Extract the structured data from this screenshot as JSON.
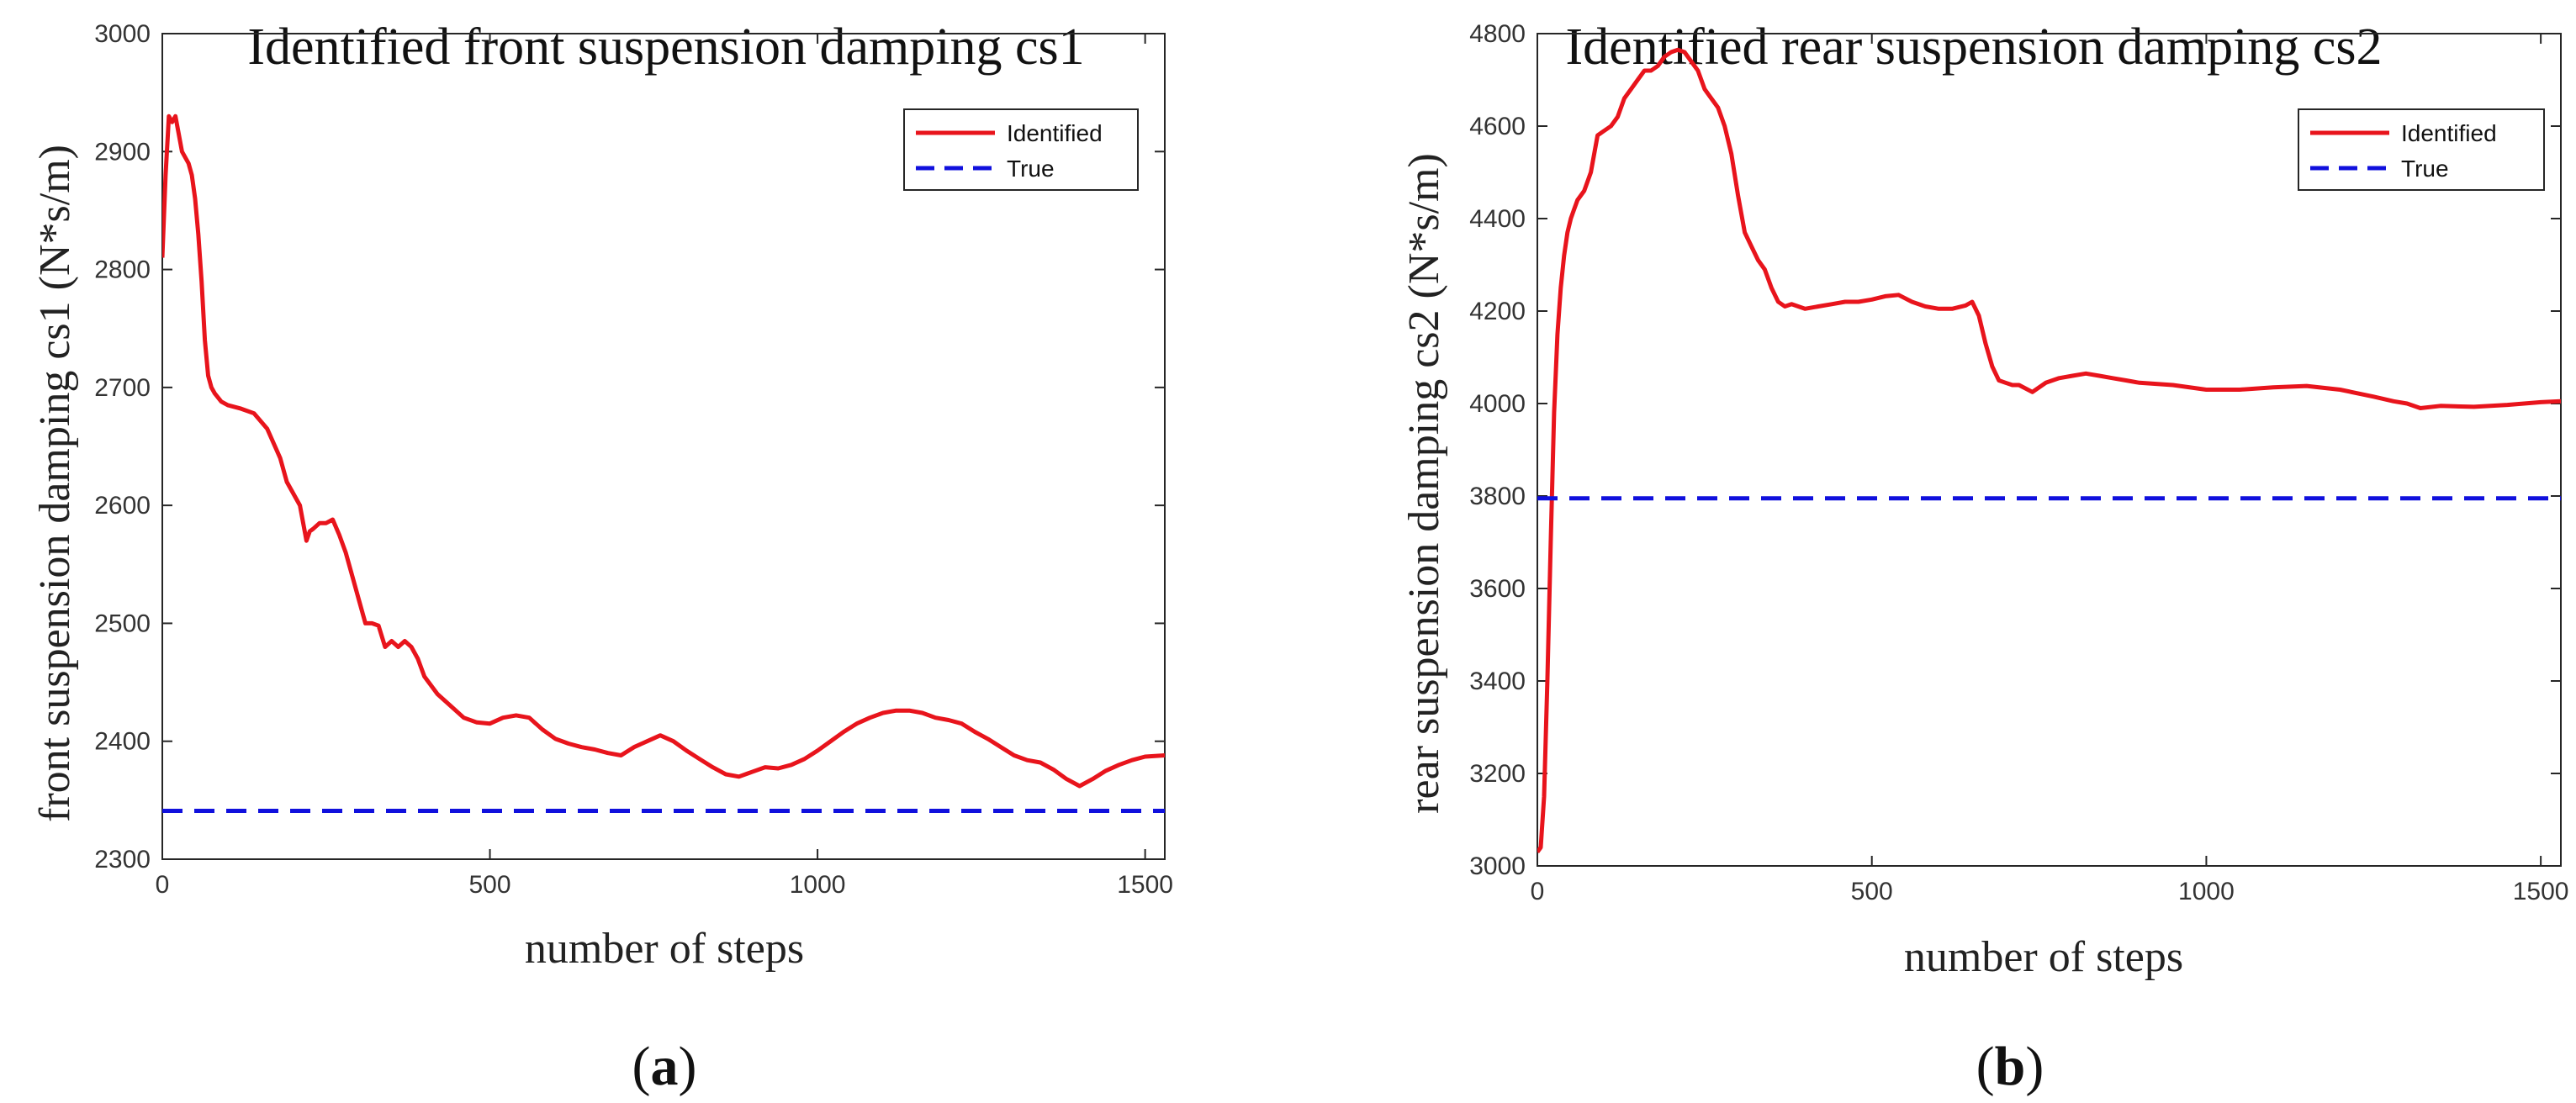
{
  "chart_data": [
    {
      "type": "line",
      "title": "Identified front suspension damping cs1",
      "xlabel": "number of steps",
      "ylabel": "front suspension damping cs1 (N*s/m)",
      "xlim": [
        0,
        1530
      ],
      "ylim": [
        2300,
        3000
      ],
      "xticks": [
        0,
        500,
        1000,
        1500
      ],
      "yticks": [
        2300,
        2400,
        2500,
        2600,
        2700,
        2800,
        2900,
        3000
      ],
      "xtick_labels": [
        "0",
        "500",
        "1000",
        "1500"
      ],
      "ytick_labels": [
        "2300",
        "2400",
        "2500",
        "2600",
        "2700",
        "2800",
        "2900",
        "3000"
      ],
      "grid": false,
      "legend_position": "top-right",
      "panel": {
        "open": "(",
        "letter": "a",
        "close": ")"
      },
      "series": [
        {
          "name": "Identified",
          "color": "#e8141c",
          "style": "solid",
          "x": [
            0,
            5,
            10,
            15,
            20,
            25,
            30,
            35,
            40,
            45,
            50,
            55,
            60,
            65,
            70,
            75,
            80,
            90,
            100,
            120,
            140,
            160,
            180,
            190,
            200,
            210,
            215,
            220,
            225,
            230,
            240,
            250,
            260,
            270,
            280,
            290,
            300,
            310,
            320,
            330,
            340,
            350,
            360,
            370,
            380,
            390,
            400,
            420,
            440,
            460,
            480,
            500,
            520,
            540,
            560,
            580,
            600,
            620,
            640,
            660,
            680,
            700,
            720,
            740,
            760,
            780,
            800,
            820,
            840,
            860,
            880,
            900,
            920,
            940,
            960,
            980,
            1000,
            1020,
            1040,
            1060,
            1080,
            1100,
            1120,
            1140,
            1160,
            1180,
            1200,
            1220,
            1240,
            1260,
            1280,
            1300,
            1320,
            1340,
            1360,
            1380,
            1400,
            1420,
            1440,
            1460,
            1480,
            1500,
            1530
          ],
          "values": [
            2810,
            2880,
            2930,
            2925,
            2930,
            2915,
            2900,
            2895,
            2890,
            2880,
            2860,
            2830,
            2790,
            2740,
            2710,
            2700,
            2695,
            2688,
            2685,
            2682,
            2678,
            2665,
            2640,
            2620,
            2610,
            2600,
            2585,
            2570,
            2578,
            2580,
            2585,
            2585,
            2588,
            2575,
            2560,
            2540,
            2520,
            2500,
            2500,
            2498,
            2480,
            2485,
            2480,
            2485,
            2480,
            2470,
            2455,
            2440,
            2430,
            2420,
            2416,
            2415,
            2420,
            2422,
            2420,
            2410,
            2402,
            2398,
            2395,
            2393,
            2390,
            2388,
            2395,
            2400,
            2405,
            2400,
            2392,
            2385,
            2378,
            2372,
            2370,
            2374,
            2378,
            2377,
            2380,
            2385,
            2392,
            2400,
            2408,
            2415,
            2420,
            2424,
            2426,
            2426,
            2424,
            2420,
            2418,
            2415,
            2408,
            2402,
            2395,
            2388,
            2384,
            2382,
            2376,
            2368,
            2362,
            2368,
            2375,
            2380,
            2384,
            2387,
            2388
          ]
        },
        {
          "name": "True",
          "color": "#1010dd",
          "style": "dashed",
          "x": [
            0,
            1530
          ],
          "values": [
            2341,
            2341
          ]
        }
      ]
    },
    {
      "type": "line",
      "title": "Identified rear suspension damping cs2",
      "xlabel": "number of steps",
      "ylabel": "rear suspension damping cs2 (N*s/m)",
      "xlim": [
        0,
        1530
      ],
      "ylim": [
        3000,
        4800
      ],
      "xticks": [
        0,
        500,
        1000,
        1500
      ],
      "yticks": [
        3000,
        3200,
        3400,
        3600,
        3800,
        4000,
        4200,
        4400,
        4600,
        4800
      ],
      "xtick_labels": [
        "0",
        "500",
        "1000",
        "1500"
      ],
      "ytick_labels": [
        "3000",
        "3200",
        "3400",
        "3600",
        "3800",
        "4000",
        "4200",
        "4400",
        "4600",
        "4800"
      ],
      "grid": false,
      "legend_position": "top-right",
      "panel": {
        "open": "(",
        "letter": "b",
        "close": ")"
      },
      "series": [
        {
          "name": "Identified",
          "color": "#e8141c",
          "style": "solid",
          "x": [
            0,
            5,
            10,
            15,
            20,
            25,
            30,
            35,
            40,
            45,
            50,
            55,
            60,
            70,
            80,
            90,
            100,
            110,
            120,
            130,
            140,
            150,
            160,
            170,
            180,
            190,
            200,
            210,
            220,
            230,
            240,
            250,
            260,
            270,
            280,
            290,
            300,
            310,
            320,
            330,
            340,
            350,
            360,
            370,
            380,
            400,
            420,
            440,
            460,
            480,
            500,
            520,
            540,
            560,
            580,
            600,
            620,
            640,
            650,
            660,
            670,
            680,
            690,
            700,
            710,
            720,
            740,
            760,
            780,
            800,
            820,
            840,
            860,
            880,
            900,
            950,
            1000,
            1050,
            1100,
            1150,
            1200,
            1250,
            1280,
            1300,
            1320,
            1350,
            1400,
            1450,
            1500,
            1530
          ],
          "values": [
            3030,
            3040,
            3150,
            3400,
            3700,
            3980,
            4150,
            4250,
            4320,
            4370,
            4400,
            4420,
            4440,
            4460,
            4500,
            4580,
            4590,
            4600,
            4620,
            4660,
            4680,
            4700,
            4720,
            4720,
            4730,
            4750,
            4760,
            4765,
            4760,
            4740,
            4720,
            4680,
            4660,
            4640,
            4600,
            4540,
            4450,
            4370,
            4340,
            4310,
            4290,
            4250,
            4220,
            4210,
            4215,
            4205,
            4210,
            4215,
            4220,
            4220,
            4225,
            4232,
            4235,
            4220,
            4210,
            4205,
            4205,
            4212,
            4220,
            4190,
            4130,
            4080,
            4050,
            4045,
            4040,
            4040,
            4025,
            4045,
            4055,
            4060,
            4065,
            4060,
            4055,
            4050,
            4045,
            4040,
            4030,
            4030,
            4035,
            4038,
            4030,
            4015,
            4005,
            4000,
            3990,
            3995,
            3993,
            3997,
            4003,
            4005
          ]
        },
        {
          "name": "True",
          "color": "#1010dd",
          "style": "dashed",
          "x": [
            0,
            1530
          ],
          "values": [
            3795,
            3795
          ]
        }
      ]
    }
  ]
}
